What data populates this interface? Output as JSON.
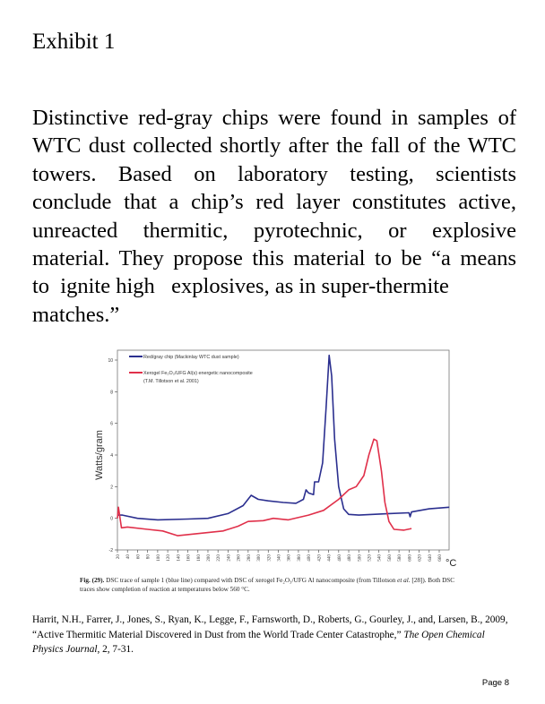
{
  "title": "Exhibit 1",
  "paragraph_lines": [
    "Distinctive red-gray chips were found in samples of",
    "WTC dust collected shortly after the fall of the WTC",
    "towers. Based on laboratory testing, scientists",
    "conclude that a chip’s red layer constitutes active,",
    "unreacted thermitic, pyrotechnic, or explosive",
    "material. They propose this material to be “a means",
    "to  ignite high   explosives, as in super-thermite",
    "matches.”"
  ],
  "chart_data": {
    "type": "line",
    "title": "",
    "xlabel": "°C",
    "ylabel": "Watts/gram",
    "xlim": [
      20,
      680
    ],
    "ylim": [
      -2,
      10.5
    ],
    "xticks": [
      20,
      40,
      60,
      80,
      100,
      120,
      140,
      160,
      180,
      200,
      220,
      240,
      260,
      280,
      300,
      320,
      340,
      360,
      380,
      400,
      420,
      440,
      460,
      480,
      500,
      520,
      540,
      560,
      580,
      600,
      620,
      640,
      660
    ],
    "yticks": [
      -2,
      0,
      2,
      4,
      6,
      8,
      10
    ],
    "legend_position": "top-left",
    "series": [
      {
        "name": "Red/gray chip (Mackinlay WTC dust sample)",
        "name_line2": "",
        "color": "#2b2f8f",
        "x": [
          20,
          30,
          60,
          100,
          160,
          200,
          240,
          270,
          286,
          300,
          320,
          350,
          375,
          390,
          395,
          400,
          410,
          412,
          420,
          428,
          435,
          441,
          446,
          452,
          460,
          470,
          480,
          500,
          560,
          600,
          602,
          605,
          640,
          680
        ],
        "y": [
          0.2,
          0.2,
          0,
          -0.1,
          -0.05,
          0,
          0.3,
          0.8,
          1.45,
          1.2,
          1.1,
          1.0,
          0.95,
          1.2,
          1.8,
          1.6,
          1.5,
          2.3,
          2.3,
          3.5,
          7,
          10.3,
          9,
          5,
          2,
          0.6,
          0.25,
          0.2,
          0.3,
          0.35,
          0.1,
          0.4,
          0.6,
          0.7
        ]
      },
      {
        "name": "Xerogel Fe₂O₃/UFG Al(s) energetic nanocomposite",
        "name_line2": "(T.M. Tillotson et al. 2001)",
        "color": "#e0304a",
        "x": [
          20,
          22,
          28,
          40,
          80,
          110,
          140,
          170,
          200,
          230,
          260,
          280,
          310,
          330,
          360,
          400,
          430,
          460,
          480,
          495,
          510,
          520,
          530,
          536,
          545,
          552,
          560,
          570,
          590,
          605
        ],
        "y": [
          0,
          0.7,
          -0.6,
          -0.55,
          -0.7,
          -0.8,
          -1.1,
          -1.0,
          -0.9,
          -0.8,
          -0.5,
          -0.2,
          -0.15,
          0,
          -0.1,
          0.2,
          0.5,
          1.2,
          1.8,
          2.0,
          2.7,
          4,
          5.0,
          4.9,
          3,
          1,
          -0.2,
          -0.7,
          -0.75,
          -0.65
        ]
      }
    ]
  },
  "caption": {
    "label": "Fig. (29).",
    "text": " DSC trace of sample 1 (blue line) compared with DSC of xerogel Fe₂O₃/UFG Al nanocomposite (from Tillotson ",
    "etal": "et al.",
    "text2": " [28]). Both DSC traces show completion of reaction at temperatures below 560 °C."
  },
  "citation": {
    "text": "Harrit, N.H., Farrer, J., Jones, S., Ryan, K., Legge, F., Farnsworth, D., Roberts, G., Gourley, J., and, Larsen, B., 2009, “Active Thermitic Material Discovered in Dust from the World Trade Center Catastrophe,” ",
    "journal": "The Open Chemical Physics Journal",
    "text2": ", 2, 7-31."
  },
  "page_number": "Page 8"
}
